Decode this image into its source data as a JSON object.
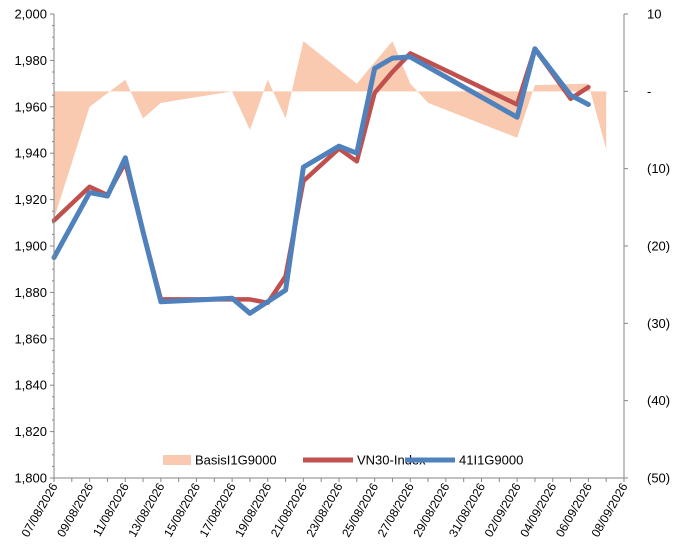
{
  "chart_data": {
    "type": "line",
    "x": [
      "07/08/2026",
      "08/08/2026",
      "09/08/2026",
      "10/08/2026",
      "11/08/2026",
      "12/08/2026",
      "13/08/2026",
      "14/08/2026",
      "15/08/2026",
      "16/08/2026",
      "17/08/2026",
      "18/08/2026",
      "19/08/2026",
      "20/08/2026",
      "21/08/2026",
      "22/08/2026",
      "23/08/2026",
      "24/08/2026",
      "25/08/2026",
      "26/08/2026",
      "27/08/2026",
      "28/08/2026",
      "29/08/2026",
      "30/08/2026",
      "31/08/2026",
      "01/09/2026",
      "02/09/2026",
      "03/09/2026",
      "04/09/2026",
      "05/09/2026",
      "06/09/2026",
      "07/09/2026",
      "08/09/2026"
    ],
    "x_tick_labels": [
      "07/08/2026",
      "09/08/2026",
      "11/08/2026",
      "13/08/2026",
      "15/08/2026",
      "17/08/2026",
      "19/08/2026",
      "21/08/2026",
      "23/08/2026",
      "25/08/2026",
      "27/08/2026",
      "29/08/2026",
      "31/08/2026",
      "02/09/2026",
      "04/09/2026",
      "06/09/2026",
      "08/09/2026"
    ],
    "left_axis": {
      "ylim": [
        1800,
        2000
      ],
      "ticks": [
        1800,
        1820,
        1840,
        1860,
        1880,
        1900,
        1920,
        1940,
        1960,
        1980,
        2000
      ],
      "tick_labels": [
        "1,800",
        "1,820",
        "1,840",
        "1,860",
        "1,880",
        "1,900",
        "1,920",
        "1,940",
        "1,960",
        "1,980",
        "2,000"
      ]
    },
    "right_axis": {
      "ylim": [
        -50,
        10
      ],
      "ticks": [
        10,
        0,
        -10,
        -20,
        -30,
        -40,
        -50
      ],
      "tick_labels": [
        "10",
        "-",
        "(10)",
        "(20)",
        "(30)",
        "(40)",
        "(50)"
      ]
    },
    "series": [
      {
        "name": "BasisI1G9000",
        "kind": "area",
        "axis": "right",
        "color": "#f9c9b0",
        "values": [
          -16.5,
          null,
          -2.0,
          null,
          1.5,
          -3.5,
          -1.5,
          null,
          null,
          null,
          0.0,
          -5.0,
          1.5,
          -3.5,
          6.5,
          null,
          null,
          1.0,
          null,
          6.5,
          1.0,
          -1.5,
          null,
          null,
          null,
          null,
          -6.0,
          0.8,
          null,
          null,
          1.0,
          -7.5,
          null
        ]
      },
      {
        "name": "VN30-Index",
        "kind": "line",
        "axis": "left",
        "color": "#c0504d",
        "values": [
          1911,
          null,
          1925.5,
          1922,
          1936,
          1906,
          1877,
          null,
          null,
          null,
          1877,
          1877,
          1875.5,
          1887,
          1928,
          null,
          1942,
          1936.5,
          1966,
          1975,
          1983,
          null,
          null,
          null,
          null,
          null,
          1961,
          1985,
          null,
          1963.5,
          1968.5,
          null,
          null
        ]
      },
      {
        "name": "41I1G9000",
        "kind": "line",
        "axis": "left",
        "color": "#4f81bd",
        "values": [
          1895,
          null,
          1923,
          1921.5,
          1938,
          1906,
          1876,
          null,
          null,
          null,
          1877.5,
          1871,
          1876,
          1881,
          1934,
          null,
          1943,
          1940,
          1976.5,
          1981,
          1981.5,
          null,
          null,
          null,
          null,
          null,
          1955.5,
          1985,
          null,
          1965,
          1961,
          null,
          null
        ]
      }
    ],
    "legend_position": "bottom-center",
    "grid": false
  }
}
